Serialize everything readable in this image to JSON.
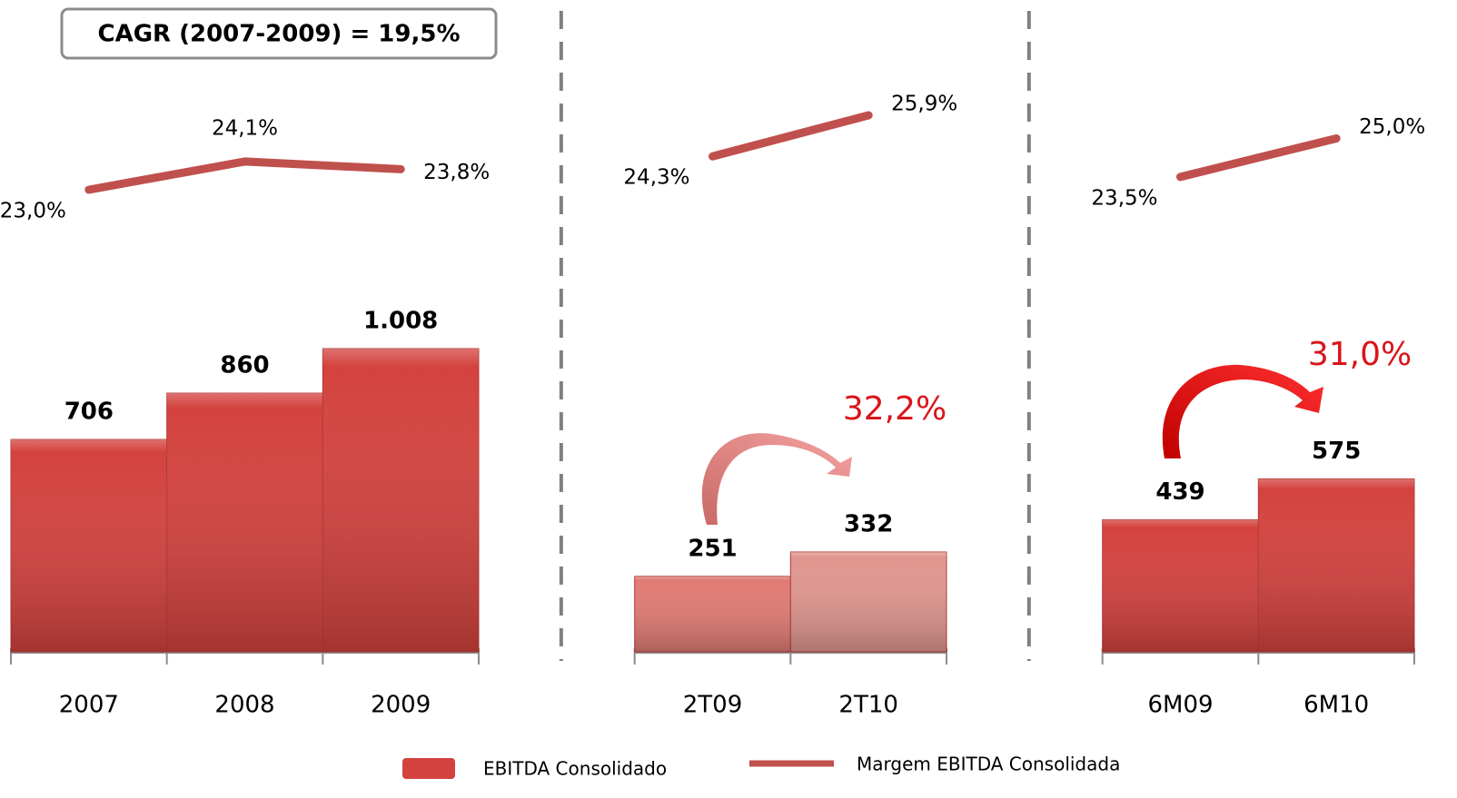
{
  "chart_data": {
    "type": "bar",
    "categories": [
      "2007",
      "2008",
      "2009",
      null,
      "2T09",
      "2T10",
      null,
      "6M09",
      "6M10"
    ],
    "series": [
      {
        "name": "EBITDA Consolidado",
        "color": "#d4423e",
        "colors": [
          "#d4423e",
          "#d4423e",
          "#d4423e",
          null,
          "#e07a74",
          "#e0968f",
          null,
          "#d4423e",
          "#d4423e"
        ],
        "values": [
          706,
          860,
          1008,
          null,
          251,
          332,
          null,
          439,
          575
        ],
        "value_labels": [
          "706",
          "860",
          "1.008",
          null,
          "251",
          "332",
          null,
          "439",
          "575"
        ]
      },
      {
        "name": "Margem EBITDA Consolidada",
        "type": "line",
        "color": "#c0504d",
        "values": [
          23.0,
          24.1,
          23.8,
          null,
          24.3,
          25.9,
          null,
          23.5,
          25.0
        ],
        "value_labels": [
          "23,0%",
          "24,1%",
          "23,8%",
          null,
          "24,3%",
          "25,9%",
          null,
          "23,5%",
          "25,0%"
        ]
      }
    ],
    "annotations": [
      "CAGR (2007-2009) = 19,5%",
      "32,2%",
      "31,0%"
    ]
  }
}
